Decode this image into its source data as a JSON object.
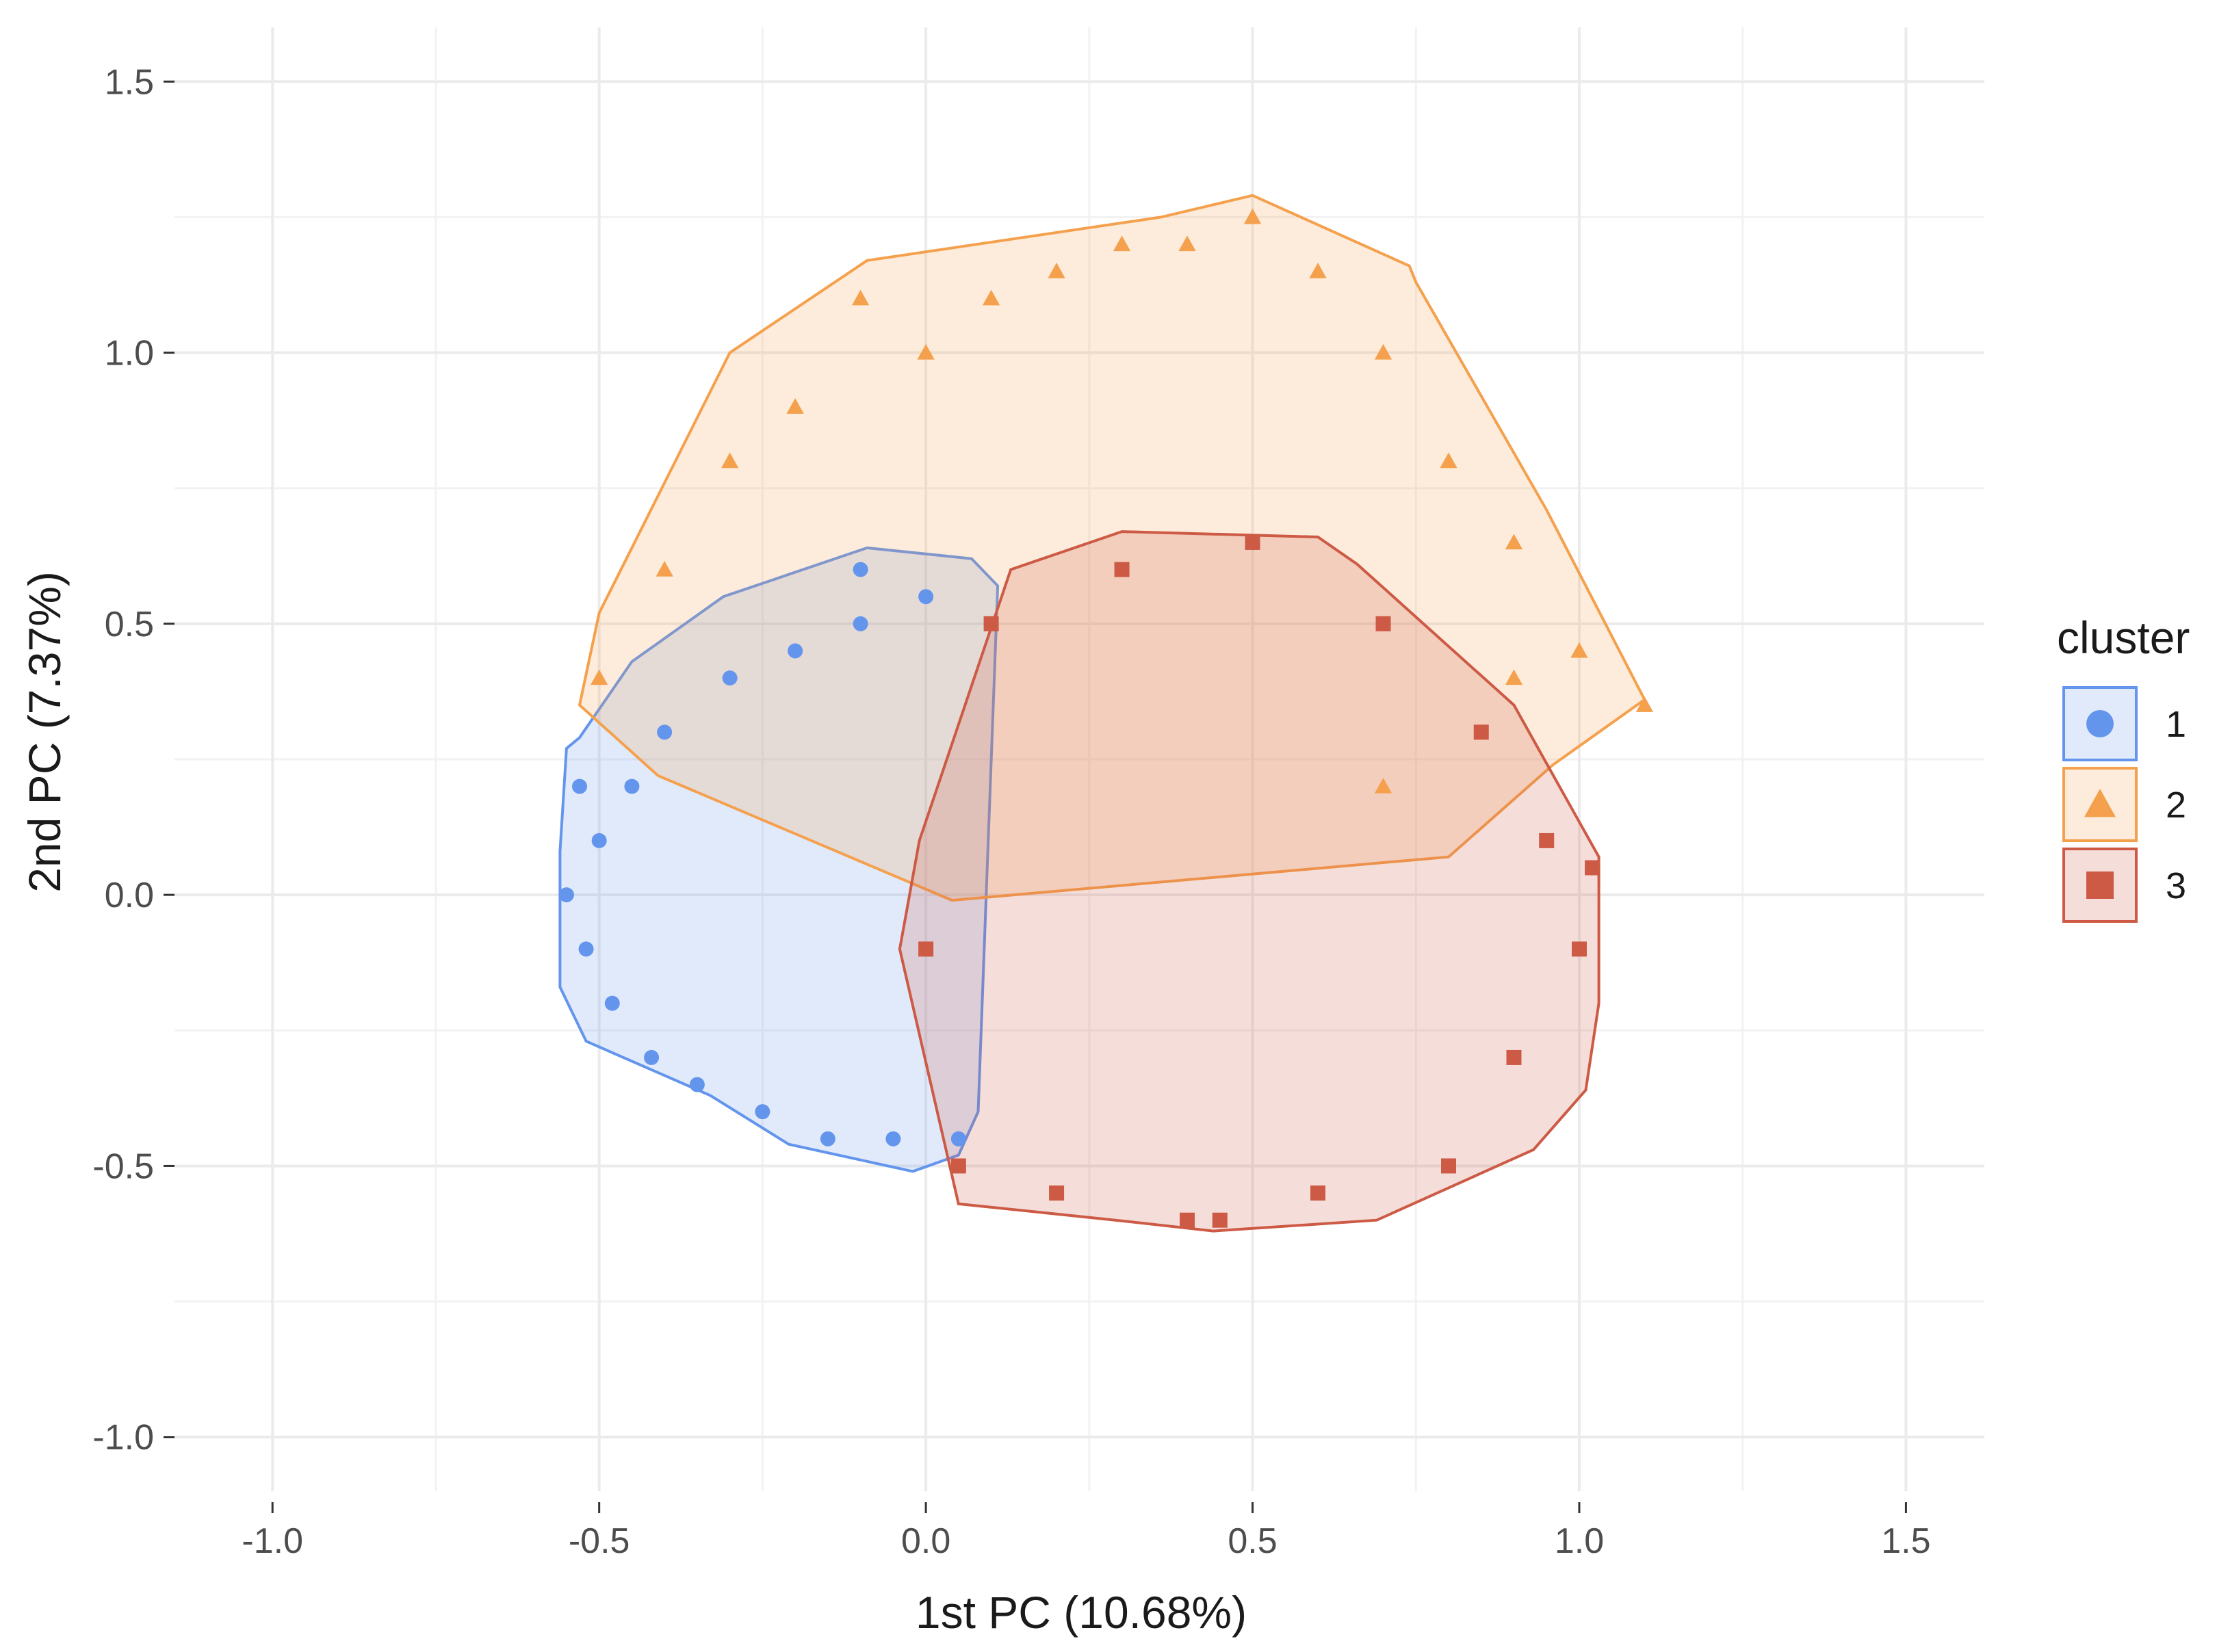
{
  "chart_data": {
    "type": "scatter",
    "xlabel": "1st PC (10.68%)",
    "ylabel": "2nd PC (7.37%)",
    "xlim": [
      -1.15,
      1.62
    ],
    "ylim": [
      -1.1,
      1.6
    ],
    "x_ticks": [
      -1.0,
      -0.5,
      0.0,
      0.5,
      1.0,
      1.5
    ],
    "x_tick_labels": [
      "-1.0",
      "-0.5",
      "0.0",
      "0.5",
      "1.0",
      "1.5"
    ],
    "y_ticks": [
      -1.0,
      -0.5,
      0.0,
      0.5,
      1.0,
      1.5
    ],
    "y_tick_labels": [
      "-1.0",
      "-0.5",
      "0.0",
      "0.5",
      "1.0",
      "1.5"
    ],
    "grid": true,
    "legend": {
      "title": "cluster",
      "position": "right"
    },
    "series": [
      {
        "name": "1",
        "marker": "circle",
        "color": "#6495ED",
        "hull": [
          [
            -0.55,
            0.27
          ],
          [
            -0.53,
            0.29
          ],
          [
            -0.45,
            0.43
          ],
          [
            -0.31,
            0.55
          ],
          [
            -0.09,
            0.64
          ],
          [
            0.07,
            0.62
          ],
          [
            0.11,
            0.57
          ],
          [
            0.08,
            -0.4
          ],
          [
            0.05,
            -0.48
          ],
          [
            -0.02,
            -0.51
          ],
          [
            -0.21,
            -0.46
          ],
          [
            -0.33,
            -0.37
          ],
          [
            -0.52,
            -0.27
          ],
          [
            -0.56,
            -0.17
          ],
          [
            -0.56,
            0.08
          ]
        ],
        "points": [
          [
            -0.55,
            0.0
          ],
          [
            -0.52,
            -0.1
          ],
          [
            -0.5,
            0.1
          ],
          [
            -0.48,
            -0.2
          ],
          [
            -0.45,
            0.2
          ],
          [
            -0.42,
            -0.3
          ],
          [
            -0.4,
            0.3
          ],
          [
            -0.35,
            -0.35
          ],
          [
            -0.3,
            0.4
          ],
          [
            -0.25,
            -0.4
          ],
          [
            -0.2,
            0.45
          ],
          [
            -0.15,
            -0.45
          ],
          [
            -0.1,
            0.5
          ],
          [
            -0.05,
            -0.45
          ],
          [
            0.0,
            0.55
          ],
          [
            0.05,
            -0.45
          ],
          [
            -0.53,
            0.2
          ],
          [
            -0.1,
            0.6
          ]
        ]
      },
      {
        "name": "2",
        "marker": "triangle",
        "color": "#F5A04D",
        "hull": [
          [
            -0.53,
            0.35
          ],
          [
            -0.5,
            0.52
          ],
          [
            -0.3,
            1.0
          ],
          [
            -0.09,
            1.17
          ],
          [
            0.36,
            1.25
          ],
          [
            0.5,
            1.29
          ],
          [
            0.74,
            1.16
          ],
          [
            0.75,
            1.13
          ],
          [
            0.95,
            0.71
          ],
          [
            1.1,
            0.36
          ],
          [
            0.96,
            0.24
          ],
          [
            0.8,
            0.07
          ],
          [
            0.04,
            -0.01
          ],
          [
            -0.41,
            0.22
          ]
        ],
        "points": [
          [
            -0.5,
            0.4
          ],
          [
            -0.4,
            0.6
          ],
          [
            -0.3,
            0.8
          ],
          [
            -0.2,
            0.9
          ],
          [
            -0.1,
            1.1
          ],
          [
            0.0,
            1.0
          ],
          [
            0.1,
            1.1
          ],
          [
            0.2,
            1.15
          ],
          [
            0.3,
            1.2
          ],
          [
            0.4,
            1.2
          ],
          [
            0.5,
            1.25
          ],
          [
            0.6,
            1.15
          ],
          [
            0.7,
            1.0
          ],
          [
            0.8,
            0.8
          ],
          [
            0.9,
            0.65
          ],
          [
            1.0,
            0.45
          ],
          [
            1.1,
            0.35
          ],
          [
            0.9,
            0.4
          ],
          [
            0.7,
            0.2
          ]
        ]
      },
      {
        "name": "3",
        "marker": "square",
        "color": "#CD5A45",
        "hull": [
          [
            0.13,
            0.6
          ],
          [
            0.3,
            0.67
          ],
          [
            0.6,
            0.66
          ],
          [
            0.66,
            0.61
          ],
          [
            0.9,
            0.35
          ],
          [
            1.03,
            0.07
          ],
          [
            1.03,
            -0.2
          ],
          [
            1.01,
            -0.36
          ],
          [
            0.93,
            -0.47
          ],
          [
            0.69,
            -0.6
          ],
          [
            0.44,
            -0.62
          ],
          [
            0.29,
            -0.6
          ],
          [
            0.05,
            -0.57
          ],
          [
            -0.04,
            -0.1
          ],
          [
            -0.01,
            0.1
          ]
        ],
        "points": [
          [
            0.0,
            -0.1
          ],
          [
            0.05,
            -0.5
          ],
          [
            0.1,
            0.5
          ],
          [
            0.2,
            -0.55
          ],
          [
            0.3,
            0.6
          ],
          [
            0.4,
            -0.6
          ],
          [
            0.5,
            0.65
          ],
          [
            0.6,
            -0.55
          ],
          [
            0.7,
            0.5
          ],
          [
            0.8,
            -0.5
          ],
          [
            0.85,
            0.3
          ],
          [
            0.9,
            -0.3
          ],
          [
            0.95,
            0.1
          ],
          [
            1.0,
            -0.1
          ],
          [
            1.02,
            0.05
          ],
          [
            0.45,
            -0.6
          ]
        ]
      }
    ]
  }
}
